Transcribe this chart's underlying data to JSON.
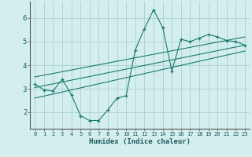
{
  "background_color": "#d4eeee",
  "grid_color": "#aed4d4",
  "line_color": "#1a7a6e",
  "xlabel": "Humidex (Indice chaleur)",
  "xlim": [
    -0.5,
    23.5
  ],
  "ylim": [
    1.3,
    6.7
  ],
  "yticks": [
    2,
    3,
    4,
    5,
    6
  ],
  "xtick_labels": [
    "0",
    "1",
    "2",
    "3",
    "4",
    "5",
    "6",
    "7",
    "8",
    "9",
    "10",
    "11",
    "12",
    "13",
    "14",
    "15",
    "16",
    "17",
    "18",
    "19",
    "20",
    "21",
    "22",
    "23"
  ],
  "series1_x": [
    0,
    1,
    2,
    3,
    4,
    5,
    6,
    7,
    8,
    9,
    10,
    11,
    12,
    13,
    14,
    15,
    16,
    17,
    18,
    19,
    20,
    21,
    22,
    23
  ],
  "series1_y": [
    3.2,
    2.95,
    2.9,
    3.4,
    2.75,
    1.85,
    1.65,
    1.65,
    2.1,
    2.6,
    2.7,
    4.65,
    5.55,
    6.35,
    5.6,
    3.75,
    5.1,
    5.0,
    5.15,
    5.3,
    5.2,
    5.05,
    5.0,
    4.85
  ],
  "series2_x": [
    0,
    23
  ],
  "series2_y": [
    3.05,
    4.85
  ],
  "series3_x": [
    0,
    23
  ],
  "series3_y": [
    3.5,
    5.2
  ],
  "series4_x": [
    0,
    23
  ],
  "series4_y": [
    2.6,
    4.6
  ]
}
